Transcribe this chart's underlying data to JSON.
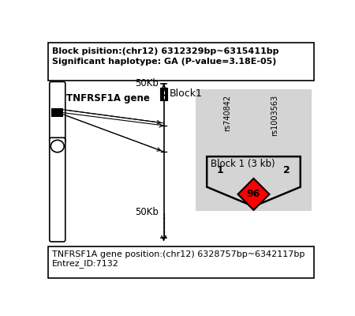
{
  "top_box_text1": "Block pisition:(chr12) 6312329bp~6315411bp",
  "top_box_text2": "Significant haplotype: GA (P-value=3.18E-05)",
  "bottom_box_text1": "TNFRSF1A gene position:(chr12) 6328757bp~6342117bp",
  "bottom_box_text2": "Entrez_ID:7132",
  "gene_label": "TNFRSF1A gene",
  "block_label": "Block1",
  "label_50kb_top": "50Kb",
  "label_50kb_bottom": "50Kb",
  "rs1": "rs740842",
  "rs2": "rs1003563",
  "block_title": "Block 1 (3 kb)",
  "col1": "1",
  "col2": "2",
  "diamond_value": "96",
  "bg_color": "#ffffff",
  "box_bg": "#d3d3d3",
  "diamond_color": "#ff0000"
}
